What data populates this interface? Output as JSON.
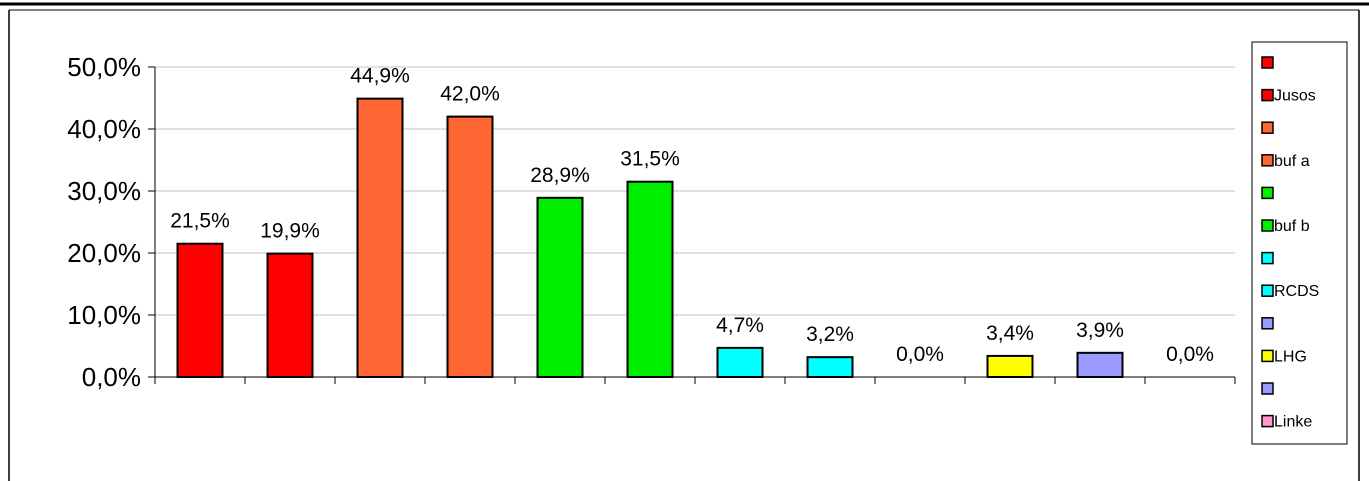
{
  "chart_data": {
    "type": "bar",
    "categories": [
      "",
      "",
      "",
      "",
      "",
      "",
      "",
      "",
      "",
      "",
      "",
      ""
    ],
    "values": [
      21.5,
      19.9,
      44.9,
      42.0,
      28.9,
      31.5,
      4.7,
      3.2,
      0.0,
      3.4,
      3.9,
      0.0
    ],
    "value_labels": [
      "21,5%",
      "19,9%",
      "44,9%",
      "42,0%",
      "28,9%",
      "31,5%",
      "4,7%",
      "3,2%",
      "0,0%",
      "3,4%",
      "3,9%",
      "0,0%"
    ],
    "bar_colors": [
      "#ff0000",
      "#ff0000",
      "#ff6633",
      "#ff6633",
      "#00ee00",
      "#00ee00",
      "#00ffff",
      "#00ffff",
      "#9999ff",
      "#ffff00",
      "#9999ff",
      "#ff99cc"
    ],
    "ylim": [
      0,
      50
    ],
    "y_ticks": [
      0,
      10,
      20,
      30,
      40,
      50
    ],
    "y_tick_labels": [
      "0,0%",
      "10,0%",
      "20,0%",
      "30,0%",
      "40,0%",
      "50,0%"
    ],
    "grid": true,
    "legend_position": "right",
    "legend": [
      {
        "label": "",
        "color": "#ff0000"
      },
      {
        "label": "Jusos",
        "color": "#ff0000"
      },
      {
        "label": "",
        "color": "#ff6633"
      },
      {
        "label": "buf a",
        "color": "#ff6633"
      },
      {
        "label": "",
        "color": "#00ee00"
      },
      {
        "label": "buf b",
        "color": "#00ee00"
      },
      {
        "label": "",
        "color": "#00ffff"
      },
      {
        "label": "RCDS",
        "color": "#00ffff"
      },
      {
        "label": "",
        "color": "#9999ff"
      },
      {
        "label": "LHG",
        "color": "#ffff00"
      },
      {
        "label": "",
        "color": "#9999ff"
      },
      {
        "label": "Linke",
        "color": "#ff99cc"
      }
    ]
  }
}
